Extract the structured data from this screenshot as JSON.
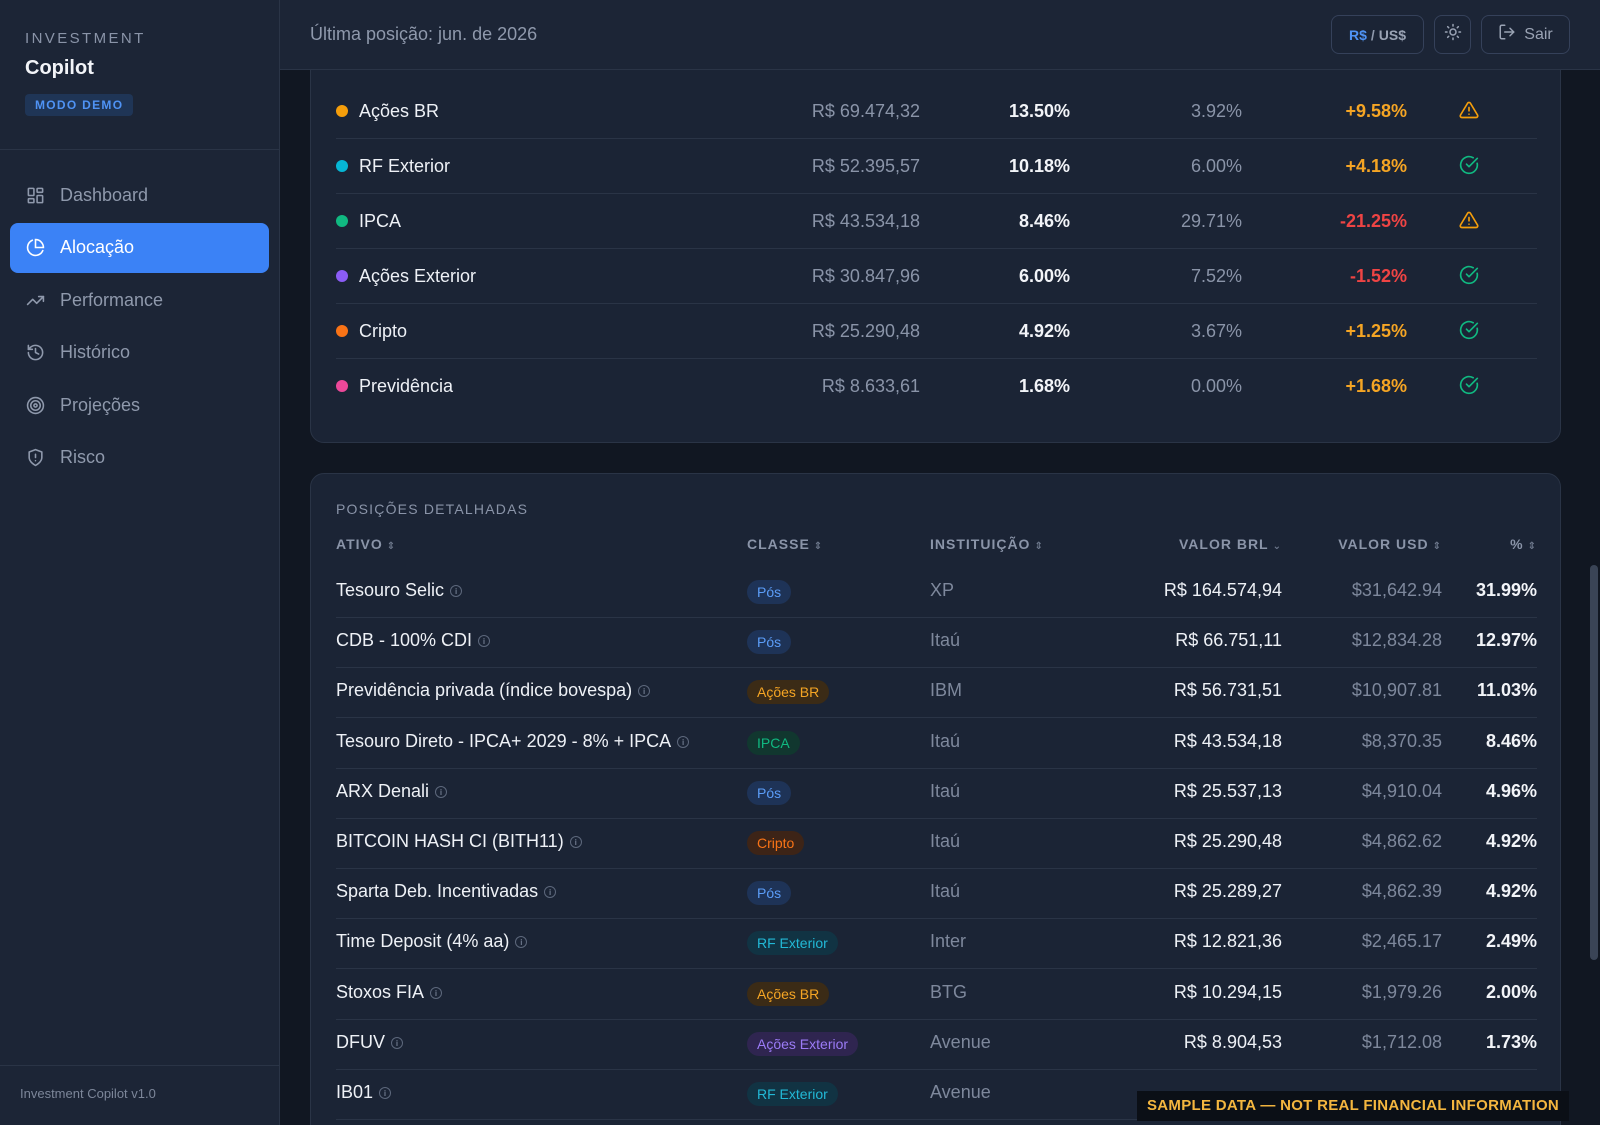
{
  "app": {
    "kicker": "INVESTMENT",
    "name": "Copilot",
    "mode_badge": "MODO DEMO",
    "footer_version": "Investment Copilot v1.0"
  },
  "nav": [
    {
      "label": "Dashboard",
      "icon": "dashboard-icon",
      "active": false
    },
    {
      "label": "Alocação",
      "icon": "pie-chart-icon",
      "active": true
    },
    {
      "label": "Performance",
      "icon": "trending-up-icon",
      "active": false
    },
    {
      "label": "Histórico",
      "icon": "history-icon",
      "active": false
    },
    {
      "label": "Projeções",
      "icon": "target-icon",
      "active": false
    },
    {
      "label": "Risco",
      "icon": "shield-icon",
      "active": false
    }
  ],
  "header": {
    "position_text": "Última posição: jun. de 2026",
    "currency_a": "R$",
    "currency_sep": "/",
    "currency_b": "US$",
    "logout_label": "Sair"
  },
  "colors": {
    "accent": "#3b82f6",
    "positive": "#f5a524",
    "negative": "#ef4444",
    "ok": "#10b981",
    "warn": "#f59e0b"
  },
  "allocation": [
    {
      "name": "Ações BR",
      "color": "#f59e0b",
      "value": "R$ 69.474,32",
      "pct": "13.50%",
      "target": "3.92%",
      "deviation": "+9.58%",
      "dev_color": "#f5a524",
      "status": "warning"
    },
    {
      "name": "RF Exterior",
      "color": "#06b6d4",
      "value": "R$ 52.395,57",
      "pct": "10.18%",
      "target": "6.00%",
      "deviation": "+4.18%",
      "dev_color": "#f5a524",
      "status": "ok"
    },
    {
      "name": "IPCA",
      "color": "#10b981",
      "value": "R$ 43.534,18",
      "pct": "8.46%",
      "target": "29.71%",
      "deviation": "-21.25%",
      "dev_color": "#ef4444",
      "status": "warning"
    },
    {
      "name": "Ações Exterior",
      "color": "#8b5cf6",
      "value": "R$ 30.847,96",
      "pct": "6.00%",
      "target": "7.52%",
      "deviation": "-1.52%",
      "dev_color": "#ef4444",
      "status": "ok"
    },
    {
      "name": "Cripto",
      "color": "#f97316",
      "value": "R$ 25.290,48",
      "pct": "4.92%",
      "target": "3.67%",
      "deviation": "+1.25%",
      "dev_color": "#f5a524",
      "status": "ok"
    },
    {
      "name": "Previdência",
      "color": "#ec4899",
      "value": "R$ 8.633,61",
      "pct": "1.68%",
      "target": "0.00%",
      "deviation": "+1.68%",
      "dev_color": "#f5a524",
      "status": "ok"
    }
  ],
  "positions": {
    "title": "POSIÇÕES DETALHADAS",
    "columns": {
      "ativo": "ATIVO",
      "classe": "CLASSE",
      "instituicao": "INSTITUIÇÃO",
      "valor_brl": "VALOR BRL",
      "valor_usd": "VALOR USD",
      "pct": "%"
    },
    "rows": [
      {
        "ativo": "Tesouro Selic",
        "classe": "Pós",
        "classe_key": "pos",
        "inst": "XP",
        "brl": "R$ 164.574,94",
        "usd": "$31,642.94",
        "pct": "31.99%"
      },
      {
        "ativo": "CDB - 100% CDI",
        "classe": "Pós",
        "classe_key": "pos",
        "inst": "Itaú",
        "brl": "R$ 66.751,11",
        "usd": "$12,834.28",
        "pct": "12.97%"
      },
      {
        "ativo": "Previdência privada (índice bovespa)",
        "classe": "Ações BR",
        "classe_key": "acoesbr",
        "inst": "IBM",
        "brl": "R$ 56.731,51",
        "usd": "$10,907.81",
        "pct": "11.03%"
      },
      {
        "ativo": "Tesouro Direto - IPCA+ 2029 - 8% + IPCA",
        "classe": "IPCA",
        "classe_key": "ipca",
        "inst": "Itaú",
        "brl": "R$ 43.534,18",
        "usd": "$8,370.35",
        "pct": "8.46%"
      },
      {
        "ativo": "ARX Denali",
        "classe": "Pós",
        "classe_key": "pos",
        "inst": "Itaú",
        "brl": "R$ 25.537,13",
        "usd": "$4,910.04",
        "pct": "4.96%"
      },
      {
        "ativo": "BITCOIN HASH CI (BITH11)",
        "classe": "Cripto",
        "classe_key": "cripto",
        "inst": "Itaú",
        "brl": "R$ 25.290,48",
        "usd": "$4,862.62",
        "pct": "4.92%"
      },
      {
        "ativo": "Sparta Deb. Incentivadas",
        "classe": "Pós",
        "classe_key": "pos",
        "inst": "Itaú",
        "brl": "R$ 25.289,27",
        "usd": "$4,862.39",
        "pct": "4.92%"
      },
      {
        "ativo": "Time Deposit (4% aa)",
        "classe": "RF Exterior",
        "classe_key": "rfext",
        "inst": "Inter",
        "brl": "R$ 12.821,36",
        "usd": "$2,465.17",
        "pct": "2.49%"
      },
      {
        "ativo": "Stoxos FIA",
        "classe": "Ações BR",
        "classe_key": "acoesbr",
        "inst": "BTG",
        "brl": "R$ 10.294,15",
        "usd": "$1,979.26",
        "pct": "2.00%"
      },
      {
        "ativo": "DFUV",
        "classe": "Ações Exterior",
        "classe_key": "acoesext",
        "inst": "Avenue",
        "brl": "R$ 8.904,53",
        "usd": "$1,712.08",
        "pct": "1.73%"
      },
      {
        "ativo": "IB01",
        "classe": "RF Exterior",
        "classe_key": "rfext",
        "inst": "Avenue",
        "brl": "",
        "usd": "",
        "pct": ""
      }
    ]
  },
  "badge_styles": {
    "pos": {
      "bg": "#1e3357",
      "fg": "#5b9cf7"
    },
    "acoesbr": {
      "bg": "#3b2b16",
      "fg": "#f5a524"
    },
    "ipca": {
      "bg": "#11372f",
      "fg": "#10b981"
    },
    "cripto": {
      "bg": "#3d2417",
      "fg": "#f97316"
    },
    "rfext": {
      "bg": "#113343",
      "fg": "#22b8d6"
    },
    "acoesext": {
      "bg": "#2f2550",
      "fg": "#9b7bf6"
    }
  },
  "watermark": "SAMPLE DATA — NOT REAL FINANCIAL INFORMATION"
}
